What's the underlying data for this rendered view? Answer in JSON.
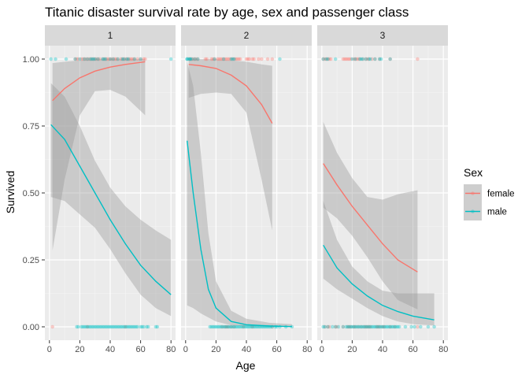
{
  "chart_data": {
    "type": "scatter",
    "title": "Titanic disaster survival rate by age, sex and passenger class",
    "xlabel": "Age",
    "ylabel": "Survived",
    "xlim": [
      -3,
      83
    ],
    "ylim": [
      -0.05,
      1.05
    ],
    "x_ticks": [
      "0",
      "20",
      "40",
      "60",
      "80"
    ],
    "x_tick_values": [
      0,
      20,
      40,
      60,
      80
    ],
    "y_ticks": [
      "0.00",
      "0.25",
      "0.50",
      "0.75",
      "1.00"
    ],
    "y_tick_values": [
      0,
      0.25,
      0.5,
      0.75,
      1
    ],
    "grid": true,
    "legend": {
      "title": "Sex",
      "placement": "right",
      "entries": [
        {
          "name": "female",
          "color": "#F8766D"
        },
        {
          "name": "male",
          "color": "#00BFC4"
        }
      ]
    },
    "band_color": "#999999",
    "panels": [
      {
        "label": "1",
        "series": [
          {
            "name": "female",
            "color": "#F8766D",
            "fit": [
              [
                2,
                0.845
              ],
              [
                10,
                0.89
              ],
              [
                20,
                0.93
              ],
              [
                30,
                0.955
              ],
              [
                40,
                0.97
              ],
              [
                50,
                0.98
              ],
              [
                63,
                0.99
              ]
            ],
            "upper": [
              [
                2,
                0.985
              ],
              [
                10,
                0.99
              ],
              [
                20,
                0.995
              ],
              [
                30,
                1.0
              ],
              [
                40,
                1.0
              ],
              [
                50,
                1.0
              ],
              [
                63,
                1.0
              ]
            ],
            "lower": [
              [
                2,
                0.285
              ],
              [
                10,
                0.55
              ],
              [
                20,
                0.79
              ],
              [
                30,
                0.88
              ],
              [
                40,
                0.885
              ],
              [
                50,
                0.86
              ],
              [
                63,
                0.79
              ]
            ],
            "points_survived": [
              17,
              18,
              19,
              21,
              22,
              23,
              24,
              25,
              26,
              27,
              28,
              29,
              30,
              31,
              32,
              33,
              35,
              36,
              37,
              38,
              39,
              40,
              41,
              42,
              43,
              44,
              45,
              47,
              48,
              49,
              50,
              51,
              52,
              53,
              54,
              55,
              56,
              58,
              60,
              62,
              63
            ],
            "points_died": [
              2,
              25,
              50
            ]
          },
          {
            "name": "male",
            "color": "#00BFC4",
            "fit": [
              [
                1,
                0.755
              ],
              [
                10,
                0.7
              ],
              [
                20,
                0.6
              ],
              [
                30,
                0.5
              ],
              [
                40,
                0.4
              ],
              [
                50,
                0.31
              ],
              [
                60,
                0.23
              ],
              [
                70,
                0.17
              ],
              [
                80,
                0.12
              ]
            ],
            "upper": [
              [
                1,
                0.91
              ],
              [
                10,
                0.86
              ],
              [
                20,
                0.75
              ],
              [
                30,
                0.62
              ],
              [
                40,
                0.52
              ],
              [
                50,
                0.45
              ],
              [
                60,
                0.4
              ],
              [
                70,
                0.36
              ],
              [
                80,
                0.325
              ]
            ],
            "lower": [
              [
                1,
                0.485
              ],
              [
                10,
                0.47
              ],
              [
                20,
                0.42
              ],
              [
                30,
                0.37
              ],
              [
                40,
                0.29
              ],
              [
                50,
                0.2
              ],
              [
                60,
                0.12
              ],
              [
                70,
                0.07
              ],
              [
                80,
                0.04
              ]
            ],
            "points_survived": [
              1,
              4,
              11,
              17,
              20,
              23,
              25,
              27,
              28,
              29,
              30,
              32,
              35,
              36,
              37,
              40,
              42,
              45,
              48,
              49,
              51,
              52,
              56,
              60,
              80
            ],
            "points_died": [
              18,
              19,
              21,
              22,
              23,
              24,
              25,
              26,
              27,
              28,
              29,
              30,
              31,
              32,
              33,
              34,
              35,
              36,
              37,
              38,
              39,
              40,
              41,
              42,
              43,
              44,
              45,
              46,
              47,
              48,
              49,
              50,
              51,
              52,
              53,
              54,
              55,
              56,
              57,
              58,
              60,
              61,
              62,
              64,
              65,
              70,
              71
            ]
          }
        ]
      },
      {
        "label": "2",
        "series": [
          {
            "name": "female",
            "color": "#F8766D",
            "fit": [
              [
                2,
                0.98
              ],
              [
                10,
                0.975
              ],
              [
                20,
                0.965
              ],
              [
                30,
                0.94
              ],
              [
                40,
                0.9
              ],
              [
                50,
                0.83
              ],
              [
                57,
                0.76
              ]
            ],
            "upper": [
              [
                2,
                1.0
              ],
              [
                10,
                1.0
              ],
              [
                20,
                1.0
              ],
              [
                30,
                0.995
              ],
              [
                40,
                0.99
              ],
              [
                50,
                0.98
              ],
              [
                57,
                0.975
              ]
            ],
            "lower": [
              [
                2,
                0.855
              ],
              [
                10,
                0.87
              ],
              [
                20,
                0.875
              ],
              [
                30,
                0.87
              ],
              [
                40,
                0.8
              ],
              [
                50,
                0.55
              ],
              [
                57,
                0.36
              ]
            ],
            "points_survived": [
              2,
              3,
              4,
              5,
              6,
              7,
              8,
              13,
              14,
              17,
              18,
              19,
              21,
              22,
              23,
              24,
              25,
              26,
              27,
              28,
              29,
              30,
              31,
              32,
              33,
              34,
              35,
              36,
              40,
              41,
              42,
              44,
              45,
              48,
              50,
              54,
              57
            ],
            "points_died": [
              24,
              26,
              27,
              28,
              30,
              32,
              38,
              44,
              57
            ]
          },
          {
            "name": "male",
            "color": "#00BFC4",
            "fit": [
              [
                1,
                0.695
              ],
              [
                5,
                0.5
              ],
              [
                10,
                0.29
              ],
              [
                15,
                0.14
              ],
              [
                20,
                0.07
              ],
              [
                30,
                0.02
              ],
              [
                40,
                0.008
              ],
              [
                55,
                0.003
              ],
              [
                70,
                0.001
              ]
            ],
            "upper": [
              [
                1,
                0.99
              ],
              [
                5,
                0.9
              ],
              [
                10,
                0.65
              ],
              [
                15,
                0.35
              ],
              [
                20,
                0.17
              ],
              [
                30,
                0.06
              ],
              [
                40,
                0.03
              ],
              [
                55,
                0.015
              ],
              [
                70,
                0.01
              ]
            ],
            "lower": [
              [
                1,
                0.08
              ],
              [
                5,
                0.07
              ],
              [
                10,
                0.05
              ],
              [
                15,
                0.035
              ],
              [
                20,
                0.02
              ],
              [
                30,
                0.006
              ],
              [
                40,
                0.002
              ],
              [
                55,
                0.0
              ],
              [
                70,
                0.0
              ]
            ],
            "points_survived": [
              1,
              1,
              2,
              3,
              3,
              4,
              6,
              8,
              19,
              25,
              30,
              31,
              32,
              62
            ],
            "points_died": [
              16,
              17,
              18,
              19,
              20,
              21,
              22,
              23,
              24,
              25,
              26,
              27,
              28,
              29,
              30,
              31,
              32,
              33,
              34,
              35,
              36,
              37,
              38,
              39,
              40,
              41,
              42,
              43,
              44,
              45,
              46,
              47,
              48,
              49,
              50,
              51,
              52,
              53,
              54,
              55,
              56,
              57,
              59,
              60,
              62,
              66,
              70
            ]
          }
        ]
      },
      {
        "label": "3",
        "series": [
          {
            "name": "female",
            "color": "#F8766D",
            "fit": [
              [
                1,
                0.61
              ],
              [
                10,
                0.53
              ],
              [
                20,
                0.45
              ],
              [
                30,
                0.38
              ],
              [
                40,
                0.31
              ],
              [
                50,
                0.25
              ],
              [
                63,
                0.205
              ]
            ],
            "upper": [
              [
                1,
                0.765
              ],
              [
                10,
                0.65
              ],
              [
                20,
                0.555
              ],
              [
                30,
                0.485
              ],
              [
                40,
                0.475
              ],
              [
                50,
                0.495
              ],
              [
                63,
                0.51
              ]
            ],
            "lower": [
              [
                1,
                0.445
              ],
              [
                10,
                0.405
              ],
              [
                20,
                0.34
              ],
              [
                30,
                0.26
              ],
              [
                40,
                0.17
              ],
              [
                50,
                0.1
              ],
              [
                63,
                0.065
              ]
            ],
            "points_survived": [
              1,
              2,
              3,
              4,
              5,
              6,
              14,
              15,
              16,
              17,
              18,
              19,
              21,
              22,
              23,
              24,
              25,
              27,
              29,
              30,
              31,
              33,
              35,
              38,
              45,
              63
            ],
            "points_died": [
              2,
              4,
              5,
              9,
              10,
              14,
              17,
              18,
              19,
              21,
              22,
              24,
              26,
              28,
              29,
              30,
              31,
              32,
              36,
              37,
              38,
              40,
              41,
              45,
              48,
              63
            ]
          },
          {
            "name": "male",
            "color": "#00BFC4",
            "fit": [
              [
                1,
                0.305
              ],
              [
                10,
                0.22
              ],
              [
                20,
                0.16
              ],
              [
                30,
                0.115
              ],
              [
                40,
                0.08
              ],
              [
                50,
                0.057
              ],
              [
                60,
                0.04
              ],
              [
                74,
                0.026
              ]
            ],
            "upper": [
              [
                1,
                0.47
              ],
              [
                10,
                0.325
              ],
              [
                20,
                0.225
              ],
              [
                30,
                0.17
              ],
              [
                40,
                0.135
              ],
              [
                50,
                0.125
              ],
              [
                60,
                0.125
              ],
              [
                74,
                0.125
              ]
            ],
            "lower": [
              [
                1,
                0.18
              ],
              [
                10,
                0.14
              ],
              [
                20,
                0.105
              ],
              [
                30,
                0.07
              ],
              [
                40,
                0.04
              ],
              [
                50,
                0.02
              ],
              [
                60,
                0.01
              ],
              [
                74,
                0.005
              ]
            ],
            "points_survived": [
              1,
              3,
              4,
              9,
              20,
              22,
              25,
              26,
              27,
              29,
              31,
              32,
              35,
              38,
              39,
              45
            ],
            "points_died": [
              1,
              2,
              4,
              7,
              9,
              11,
              14,
              16,
              17,
              18,
              19,
              20,
              21,
              22,
              23,
              24,
              25,
              26,
              27,
              28,
              29,
              30,
              31,
              32,
              33,
              34,
              35,
              36,
              37,
              38,
              39,
              40,
              41,
              42,
              43,
              44,
              45,
              46,
              47,
              48,
              49,
              50,
              51,
              55,
              59,
              61,
              65,
              70,
              74
            ]
          }
        ]
      }
    ]
  }
}
